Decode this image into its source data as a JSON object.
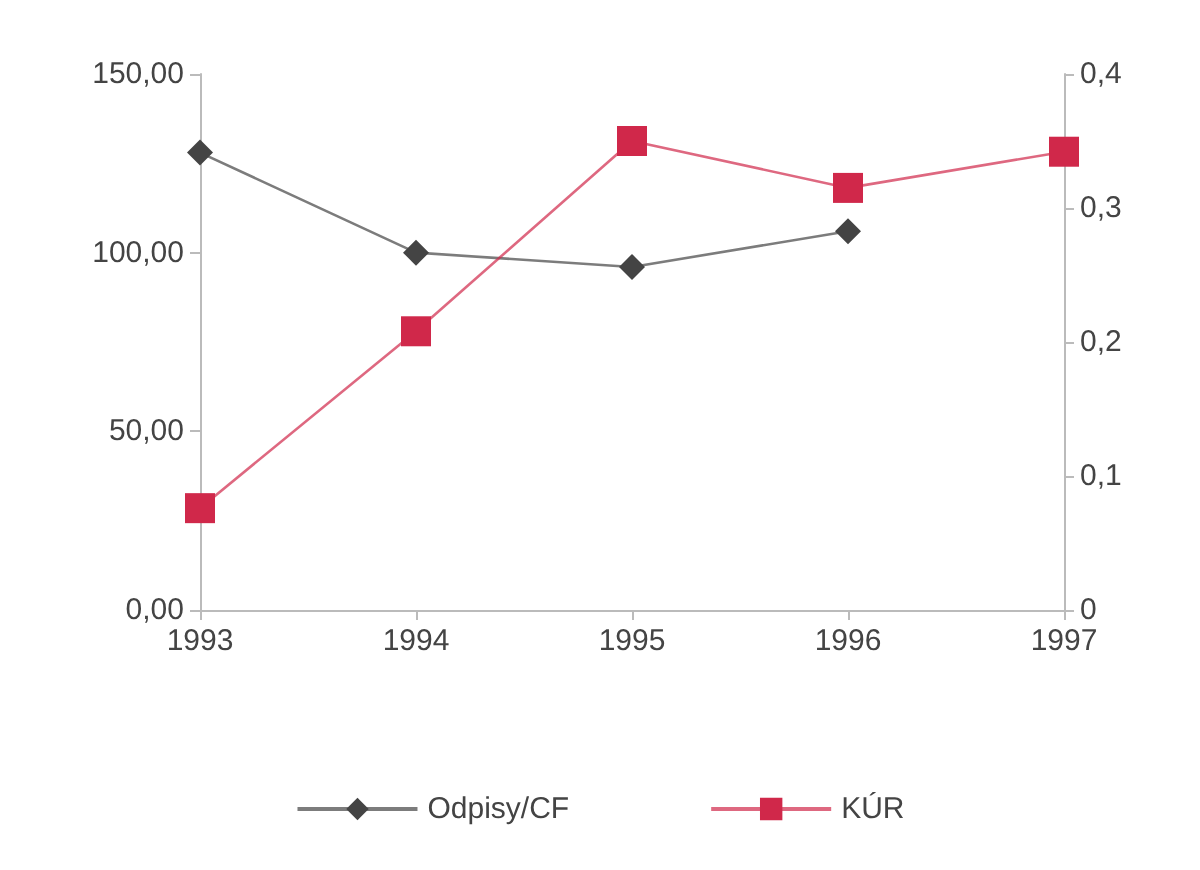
{
  "chart_data": {
    "type": "line",
    "categories": [
      "1993",
      "1994",
      "1995",
      "1996",
      "1997"
    ],
    "series": [
      {
        "name": "Odpisy/CF",
        "color": "#444444",
        "marker": "diamond",
        "values": [
          128,
          100,
          96,
          106,
          null
        ]
      },
      {
        "name": "KÚR",
        "color": "#d0284a",
        "marker": "square",
        "axis": "y2",
        "values": [
          0.076,
          0.208,
          0.35,
          0.315,
          0.342
        ]
      }
    ],
    "ylim": [
      0,
      150
    ],
    "yticks": [
      {
        "value": 0,
        "label": "0,00"
      },
      {
        "value": 50,
        "label": "50,00"
      },
      {
        "value": 100,
        "label": "100,00"
      },
      {
        "value": 150,
        "label": "150,00"
      }
    ],
    "y2lim": [
      0,
      0.4
    ],
    "y2ticks": [
      0,
      {
        "value": 0.1,
        "label": "0,1"
      },
      {
        "value": 0.2,
        "label": "0,2"
      },
      {
        "value": 0.3,
        "label": "0,3"
      },
      {
        "value": 0.4,
        "label": "0,4"
      }
    ],
    "grid": false,
    "legend": "bottom"
  }
}
